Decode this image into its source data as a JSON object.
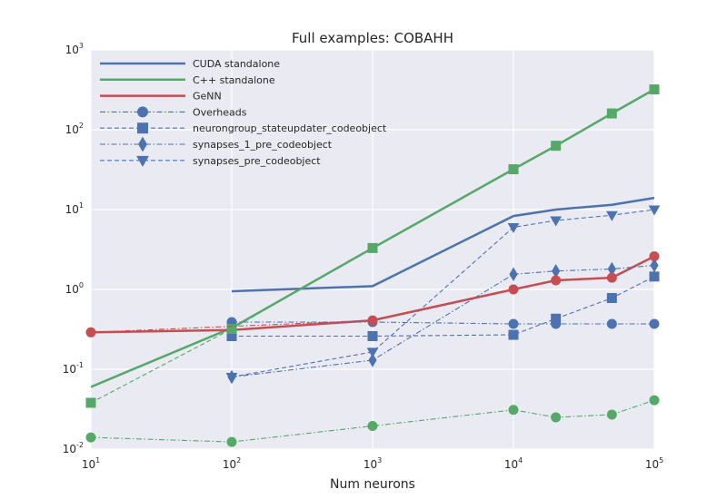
{
  "chart_data": {
    "type": "line",
    "title": "Full examples: COBAHH",
    "xlabel": "Num neurons",
    "ylabel": "",
    "xscale": "log",
    "yscale": "log",
    "xlim": [
      10,
      100000
    ],
    "ylim": [
      0.01,
      1000
    ],
    "grid": true,
    "legend_position": "top-left",
    "x_ticks": [
      {
        "base": "10",
        "exp": "1",
        "value": 10
      },
      {
        "base": "10",
        "exp": "2",
        "value": 100
      },
      {
        "base": "10",
        "exp": "3",
        "value": 1000
      },
      {
        "base": "10",
        "exp": "4",
        "value": 10000
      },
      {
        "base": "10",
        "exp": "5",
        "value": 100000
      }
    ],
    "y_ticks": [
      {
        "base": "10",
        "exp": "-2",
        "value": 0.01
      },
      {
        "base": "10",
        "exp": "-1",
        "value": 0.1
      },
      {
        "base": "10",
        "exp": "0",
        "value": 1
      },
      {
        "base": "10",
        "exp": "1",
        "value": 10
      },
      {
        "base": "10",
        "exp": "2",
        "value": 100
      },
      {
        "base": "10",
        "exp": "3",
        "value": 1000
      }
    ],
    "series": [
      {
        "name": "CUDA standalone",
        "color": "#4c72b0",
        "style": "solid",
        "marker": "none",
        "x": [
          100,
          1000,
          10000,
          20000,
          50000,
          100000
        ],
        "y": [
          0.95,
          1.1,
          8.3,
          10,
          11.5,
          14
        ]
      },
      {
        "name": "C++ standalone",
        "color": "#55a868",
        "style": "solid",
        "marker": "none",
        "x": [
          10,
          100,
          1000,
          10000,
          20000,
          50000,
          100000
        ],
        "y": [
          0.06,
          0.33,
          3.3,
          32,
          63,
          160,
          320
        ]
      },
      {
        "name": "GeNN",
        "color": "#c44e52",
        "style": "solid",
        "marker": "none",
        "x": [
          10,
          100,
          1000,
          10000,
          20000,
          50000,
          100000
        ],
        "y": [
          0.29,
          0.31,
          0.41,
          1.0,
          1.3,
          1.4,
          2.6
        ]
      },
      {
        "name": "Overheads",
        "color": "#4c72b0",
        "style": "dashdot",
        "marker": "circle",
        "x": [
          100,
          1000,
          10000,
          20000,
          50000,
          100000
        ],
        "y": [
          0.39,
          0.39,
          0.37,
          0.37,
          0.37,
          0.37
        ]
      },
      {
        "name": "neurongroup_stateupdater_codeobject",
        "color": "#4c72b0",
        "style": "dashed",
        "marker": "square",
        "x": [
          100,
          1000,
          10000,
          20000,
          50000,
          100000
        ],
        "y": [
          0.26,
          0.26,
          0.27,
          0.43,
          0.78,
          1.45
        ]
      },
      {
        "name": "synapses_1_pre_codeobject",
        "color": "#4c72b0",
        "style": "dashdot",
        "marker": "diamond",
        "x": [
          100,
          1000,
          10000,
          20000,
          50000,
          100000
        ],
        "y": [
          0.08,
          0.13,
          1.55,
          1.7,
          1.8,
          2.0
        ]
      },
      {
        "name": "synapses_pre_codeobject",
        "color": "#4c72b0",
        "style": "dashed",
        "marker": "triangle-down",
        "x": [
          100,
          1000,
          10000,
          20000,
          50000,
          100000
        ],
        "y": [
          0.08,
          0.165,
          6.0,
          7.3,
          8.5,
          10
        ]
      },
      {
        "name": "",
        "color": "#55a868",
        "style": "dashed",
        "marker": "square",
        "x": [
          10,
          100,
          1000,
          10000,
          20000,
          50000,
          100000
        ],
        "y": [
          0.038,
          0.32,
          3.3,
          32,
          63,
          160,
          320
        ]
      },
      {
        "name": "",
        "color": "#55a868",
        "style": "dashdot",
        "marker": "circle",
        "x": [
          10,
          100,
          1000,
          10000,
          20000,
          50000,
          100000
        ],
        "y": [
          0.014,
          0.0123,
          0.0195,
          0.031,
          0.025,
          0.027,
          0.041
        ]
      },
      {
        "name": "",
        "color": "#c44e52",
        "style": "dashdot",
        "marker": "circle",
        "x": [
          10,
          1000,
          10000,
          20000,
          50000,
          100000
        ],
        "y": [
          0.29,
          0.41,
          1.0,
          1.3,
          1.4,
          2.6
        ]
      }
    ]
  }
}
